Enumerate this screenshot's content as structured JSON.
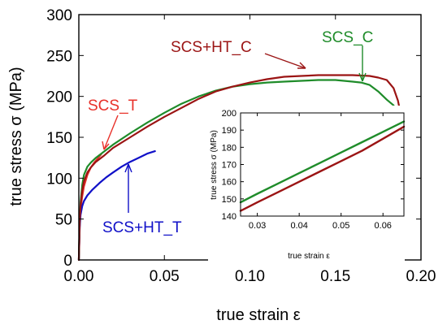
{
  "chart_data": [
    {
      "type": "line",
      "xlabel": "true strain ε",
      "ylabel": "true stress σ (MPa)",
      "xlim": [
        0,
        0.2
      ],
      "ylim": [
        0,
        300
      ],
      "xticks": [
        "0.00",
        "0.05",
        "0.10",
        "0.15",
        "0.20"
      ],
      "yticks": [
        "0",
        "50",
        "100",
        "150",
        "200",
        "250",
        "300"
      ],
      "series": [
        {
          "name": "SCS_T",
          "color": "#e8312a",
          "x": [
            0,
            0.0005,
            0.001,
            0.002,
            0.003,
            0.005,
            0.007,
            0.009,
            0.011,
            0.013
          ],
          "y": [
            0,
            45,
            62,
            78,
            90,
            104,
            113,
            119,
            124,
            129
          ]
        },
        {
          "name": "SCS+HT_T",
          "color": "#1010c8",
          "x": [
            0,
            0.0005,
            0.001,
            0.002,
            0.003,
            0.005,
            0.008,
            0.012,
            0.016,
            0.02,
            0.025,
            0.03,
            0.035,
            0.04,
            0.0445
          ],
          "y": [
            0,
            40,
            55,
            66,
            72,
            79,
            86,
            94,
            101,
            107,
            114,
            120,
            125,
            130,
            133
          ]
        },
        {
          "name": "SCS_C",
          "color": "#1f8c2a",
          "x": [
            0,
            0.0005,
            0.001,
            0.002,
            0.003,
            0.005,
            0.007,
            0.01,
            0.015,
            0.02,
            0.03,
            0.04,
            0.05,
            0.06,
            0.07,
            0.08,
            0.09,
            0.1,
            0.11,
            0.12,
            0.13,
            0.14,
            0.15,
            0.16,
            0.165,
            0.17,
            0.175,
            0.18,
            0.184
          ],
          "y": [
            0,
            50,
            70,
            92,
            104,
            114,
            119,
            125,
            133,
            141,
            155,
            168,
            180,
            191,
            200,
            207,
            212,
            215,
            217,
            218,
            219,
            220,
            220,
            218,
            217,
            214,
            206,
            196,
            189
          ]
        },
        {
          "name": "SCS+HT_C",
          "color": "#9b1414",
          "x": [
            0,
            0.0005,
            0.001,
            0.002,
            0.003,
            0.005,
            0.007,
            0.01,
            0.015,
            0.02,
            0.03,
            0.04,
            0.05,
            0.06,
            0.07,
            0.08,
            0.09,
            0.1,
            0.11,
            0.12,
            0.13,
            0.14,
            0.15,
            0.16,
            0.17,
            0.175,
            0.18,
            0.184,
            0.1865,
            0.188
          ],
          "y": [
            0,
            48,
            66,
            85,
            96,
            107,
            113,
            120,
            128,
            137,
            150,
            163,
            175,
            186,
            197,
            206,
            212,
            217,
            221,
            224,
            225,
            226,
            226,
            226,
            225,
            223,
            220,
            210,
            195,
            180
          ]
        }
      ],
      "annotations": [
        {
          "text": "SCS_T",
          "color": "#e8312a",
          "points_to": [
            0.012,
            125
          ]
        },
        {
          "text": "SCS+HT_T",
          "color": "#1010c8",
          "points_to": [
            0.028,
            118
          ]
        },
        {
          "text": "SCS_C",
          "color": "#1f8c2a",
          "points_to": [
            0.163,
            217
          ]
        },
        {
          "text": "SCS+HT_C",
          "color": "#9b1414",
          "points_to": [
            0.135,
            226
          ]
        }
      ]
    },
    {
      "type": "line",
      "xlabel": "true strain ε",
      "ylabel": "true stress σ (MPa)",
      "xlim": [
        0.026,
        0.065
      ],
      "ylim": [
        140,
        200
      ],
      "xticks": [
        "0.03",
        "0.04",
        "0.05",
        "0.06"
      ],
      "yticks": [
        "140",
        "150",
        "160",
        "170",
        "180",
        "190",
        "200"
      ],
      "series": [
        {
          "name": "SCS_C",
          "color": "#1f8c2a",
          "x": [
            0.026,
            0.03,
            0.035,
            0.04,
            0.045,
            0.05,
            0.055,
            0.06,
            0.065
          ],
          "y": [
            148,
            153,
            159,
            165,
            171,
            177,
            183,
            189,
            195
          ]
        },
        {
          "name": "SCS+HT_C",
          "color": "#9b1414",
          "x": [
            0.026,
            0.03,
            0.035,
            0.04,
            0.045,
            0.05,
            0.055,
            0.06,
            0.065
          ],
          "y": [
            143,
            148,
            154,
            160,
            166,
            172,
            178,
            185,
            192
          ]
        }
      ]
    }
  ]
}
